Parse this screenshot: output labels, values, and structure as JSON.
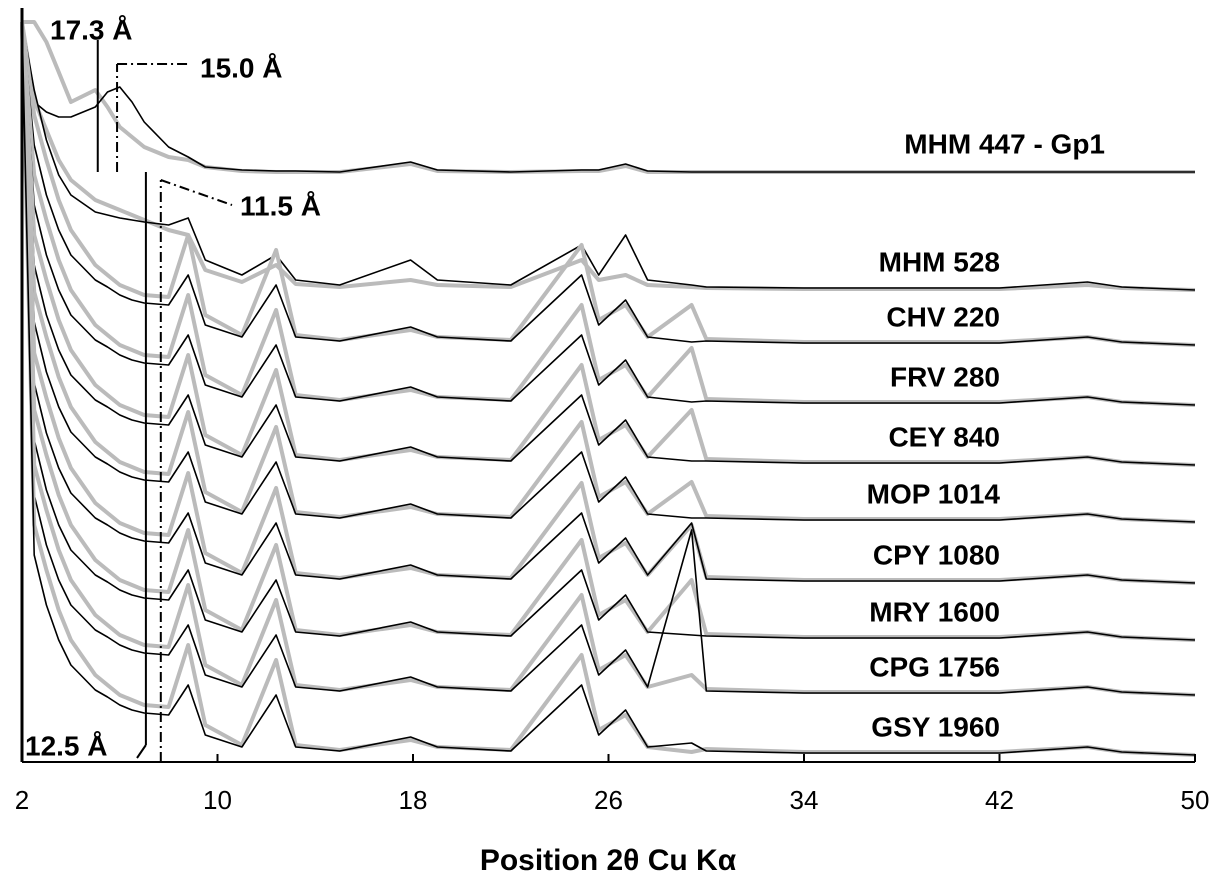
{
  "chart_data": {
    "type": "line",
    "x_label": "Position 2θ Cu Kα",
    "xlim": [
      2,
      50
    ],
    "xticks": [
      2,
      10,
      18,
      26,
      34,
      42,
      50
    ],
    "ylim": [
      0,
      742
    ],
    "x": [
      2,
      2.5,
      3,
      3.5,
      4,
      5,
      5.5,
      6,
      6.5,
      7,
      8,
      8.8,
      9.5,
      11,
      12.4,
      13.2,
      15,
      17.9,
      19,
      22,
      24.9,
      25.6,
      26.7,
      27.6,
      29.4,
      30,
      34,
      38,
      42,
      45.6,
      47,
      50
    ],
    "annotations": [
      {
        "label": "17.3 Å",
        "x": 5.1
      },
      {
        "label": "15.0 Å",
        "x": 5.89
      },
      {
        "label": "11.5 Å",
        "x": 7.68
      },
      {
        "label": "12.5 Å",
        "x": 7.07
      }
    ],
    "series": [
      {
        "color": "#bbbbbb",
        "values": [
          740,
          740,
          720,
          690,
          660,
          672,
          655,
          635,
          625,
          615,
          605,
          602,
          595,
          591,
          590,
          590,
          590,
          598,
          591,
          590,
          591,
          591,
          596,
          590,
          590,
          590,
          590,
          590,
          590,
          590,
          590,
          590
        ]
      },
      {
        "name": "MHM 447 - Gp1",
        "color": "#000000",
        "values": [
          670,
          660,
          650,
          645,
          645,
          655,
          670,
          675,
          660,
          640,
          615,
          605,
          595,
          592,
          591,
          591,
          590,
          600,
          592,
          590,
          592,
          592,
          598,
          591,
          590,
          590,
          590,
          590,
          590,
          590,
          590,
          590
        ]
      },
      {
        "color": "#bbbbbb",
        "values": [
          740,
          662,
          632,
          602,
          582,
          562,
          557,
          552,
          547,
          542,
          532,
          527,
          492,
          480,
          497,
          478,
          475,
          482,
          477,
          475,
          502,
          482,
          487,
          477,
          475,
          474,
          473,
          473,
          473,
          477,
          474,
          472
        ]
      },
      {
        "name": "MHM 528",
        "color": "#000000",
        "values": [
          740,
          672,
          622,
          587,
          567,
          550,
          547,
          544,
          542,
          540,
          537,
          544,
          502,
          487,
          507,
          482,
          477,
          502,
          482,
          477,
          517,
          487,
          527,
          482,
          477,
          475,
          474,
          474,
          474,
          480,
          475,
          472
        ]
      },
      {
        "color": "#bbbbbb",
        "values": [
          740,
          647,
          602,
          562,
          532,
          497,
          487,
          477,
          472,
          467,
          465,
          527,
          447,
          427,
          512,
          427,
          422,
          432,
          425,
          422,
          517,
          442,
          457,
          425,
          457,
          423,
          420,
          420,
          420,
          425,
          420,
          417
        ]
      },
      {
        "name": "CHV 220",
        "color": "#000000",
        "values": [
          740,
          617,
          567,
          532,
          507,
          482,
          475,
          467,
          462,
          459,
          457,
          487,
          437,
          425,
          477,
          425,
          421,
          435,
          425,
          421,
          487,
          437,
          462,
          425,
          420,
          421,
          419,
          419,
          419,
          425,
          420,
          417
        ]
      },
      {
        "color": "#bbbbbb",
        "values": [
          740,
          587,
          542,
          502,
          472,
          437,
          427,
          417,
          412,
          407,
          405,
          467,
          387,
          367,
          452,
          367,
          362,
          372,
          365,
          362,
          457,
          382,
          397,
          365,
          414,
          363,
          360,
          360,
          360,
          365,
          360,
          357
        ]
      },
      {
        "name": "FRV 280",
        "color": "#000000",
        "values": [
          740,
          557,
          507,
          472,
          447,
          422,
          415,
          407,
          402,
          399,
          397,
          427,
          377,
          365,
          417,
          365,
          361,
          375,
          365,
          361,
          427,
          377,
          402,
          365,
          360,
          361,
          359,
          359,
          359,
          365,
          360,
          357
        ]
      },
      {
        "color": "#bbbbbb",
        "values": [
          740,
          527,
          482,
          442,
          412,
          377,
          367,
          357,
          352,
          347,
          345,
          407,
          327,
          307,
          392,
          307,
          302,
          312,
          305,
          302,
          397,
          322,
          337,
          305,
          352,
          303,
          300,
          300,
          300,
          305,
          300,
          297
        ]
      },
      {
        "name": "CEY 840",
        "color": "#000000",
        "values": [
          740,
          497,
          447,
          412,
          387,
          362,
          355,
          347,
          342,
          339,
          337,
          367,
          317,
          305,
          357,
          305,
          301,
          315,
          305,
          301,
          367,
          317,
          342,
          305,
          301,
          301,
          299,
          299,
          299,
          305,
          300,
          297
        ]
      },
      {
        "color": "#bbbbbb",
        "values": [
          740,
          470,
          425,
          385,
          355,
          320,
          310,
          300,
          295,
          290,
          288,
          350,
          270,
          250,
          335,
          250,
          245,
          255,
          248,
          245,
          340,
          265,
          280,
          248,
          280,
          246,
          243,
          243,
          243,
          248,
          243,
          240
        ]
      },
      {
        "name": "MOP 1014",
        "color": "#000000",
        "values": [
          740,
          440,
          390,
          355,
          330,
          305,
          298,
          290,
          285,
          282,
          280,
          310,
          260,
          248,
          300,
          248,
          244,
          258,
          248,
          244,
          310,
          260,
          285,
          248,
          244,
          244,
          242,
          242,
          242,
          248,
          243,
          240
        ]
      },
      {
        "color": "#bbbbbb",
        "values": [
          740,
          409,
          364,
          324,
          294,
          259,
          249,
          239,
          234,
          229,
          227,
          289,
          209,
          189,
          274,
          189,
          184,
          194,
          187,
          184,
          279,
          204,
          219,
          187,
          237,
          185,
          182,
          182,
          182,
          187,
          182,
          179
        ]
      },
      {
        "name": "CPY 1080",
        "color": "#000000",
        "values": [
          740,
          379,
          329,
          294,
          269,
          244,
          237,
          229,
          224,
          221,
          219,
          249,
          199,
          187,
          239,
          187,
          183,
          197,
          187,
          183,
          249,
          199,
          224,
          187,
          239,
          183,
          181,
          181,
          181,
          187,
          182,
          179
        ]
      },
      {
        "color": "#bbbbbb",
        "values": [
          740,
          352,
          307,
          267,
          237,
          202,
          192,
          182,
          177,
          172,
          170,
          232,
          152,
          132,
          217,
          132,
          127,
          137,
          130,
          127,
          222,
          147,
          162,
          130,
          182,
          128,
          125,
          125,
          125,
          130,
          125,
          122
        ]
      },
      {
        "name": "MRY 1600",
        "color": "#000000",
        "values": [
          740,
          322,
          272,
          237,
          212,
          187,
          180,
          172,
          167,
          164,
          162,
          192,
          142,
          130,
          182,
          130,
          126,
          140,
          130,
          126,
          192,
          142,
          167,
          130,
          127,
          126,
          124,
          124,
          124,
          130,
          125,
          122
        ]
      },
      {
        "color": "#bbbbbb",
        "values": [
          740,
          297,
          252,
          212,
          182,
          147,
          137,
          127,
          122,
          117,
          115,
          177,
          97,
          77,
          162,
          77,
          72,
          82,
          75,
          72,
          167,
          92,
          107,
          75,
          87,
          73,
          70,
          70,
          70,
          75,
          70,
          67
        ]
      },
      {
        "name": "CPG 1756",
        "color": "#000000",
        "values": [
          740,
          267,
          217,
          182,
          157,
          132,
          125,
          117,
          112,
          109,
          107,
          137,
          87,
          75,
          127,
          75,
          71,
          85,
          75,
          71,
          137,
          87,
          112,
          75,
          232,
          71,
          69,
          69,
          69,
          75,
          70,
          67
        ]
      },
      {
        "color": "#bbbbbb",
        "values": [
          740,
          237,
          192,
          152,
          122,
          87,
          77,
          67,
          62,
          57,
          55,
          117,
          37,
          17,
          102,
          17,
          12,
          22,
          15,
          12,
          107,
          32,
          47,
          15,
          10,
          13,
          10,
          10,
          10,
          15,
          10,
          7
        ]
      },
      {
        "name": "GSY 1960",
        "color": "#000000",
        "values": [
          740,
          207,
          157,
          122,
          97,
          72,
          65,
          57,
          52,
          49,
          47,
          77,
          27,
          15,
          67,
          15,
          11,
          25,
          15,
          11,
          77,
          27,
          52,
          15,
          19,
          11,
          9,
          9,
          9,
          15,
          10,
          7
        ]
      }
    ]
  }
}
